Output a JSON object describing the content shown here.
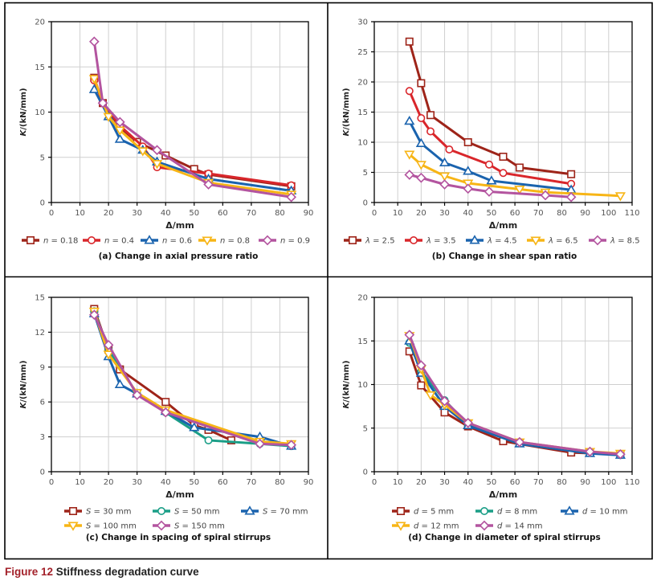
{
  "figure": {
    "label": "Figure 12",
    "title": "Stiffness degradation curve",
    "label_color": "#a3212a"
  },
  "chart_data": [
    {
      "id": "a",
      "type": "line",
      "title": "(a) Change in axial pressure ratio",
      "xlabel": "Δ/mm",
      "ylabel": "K/(kN/mm)",
      "xlim": [
        0,
        90
      ],
      "ylim": [
        0,
        20
      ],
      "xticks": [
        0,
        10,
        20,
        30,
        40,
        50,
        60,
        70,
        80,
        90
      ],
      "yticks": [
        0,
        5,
        10,
        15,
        20
      ],
      "grid": true,
      "legend_position": "bottom",
      "legend_symbol": "n",
      "series": [
        {
          "name": "n = 0.18",
          "symbol_label": "n",
          "value_label": " = 0.18",
          "marker": "square",
          "color": "#9e2419",
          "x": [
            15,
            18,
            24,
            30,
            40,
            50,
            55,
            84
          ],
          "y": [
            13.8,
            11.0,
            8.3,
            6.7,
            5.2,
            3.7,
            3.1,
            1.8
          ]
        },
        {
          "name": "n = 0.4",
          "symbol_label": "n",
          "value_label": " = 0.4",
          "marker": "circle",
          "color": "#d9262b",
          "x": [
            15,
            18,
            24,
            32,
            37,
            55,
            84
          ],
          "y": [
            13.5,
            11.0,
            8.5,
            6.2,
            3.9,
            3.2,
            1.9
          ]
        },
        {
          "name": "n = 0.6",
          "symbol_label": "n",
          "value_label": " = 0.6",
          "marker": "triangle-up",
          "color": "#1a63ae",
          "x": [
            15,
            20,
            24,
            32,
            37,
            55,
            84
          ],
          "y": [
            12.5,
            9.5,
            7.0,
            5.8,
            4.5,
            2.6,
            1.3
          ]
        },
        {
          "name": "n = 0.8",
          "symbol_label": "n",
          "value_label": " = 0.8",
          "marker": "triangle-down",
          "color": "#f7b516",
          "x": [
            15,
            20,
            24,
            32,
            37,
            55,
            84
          ],
          "y": [
            13.7,
            9.5,
            8.0,
            5.7,
            4.3,
            2.2,
            0.9
          ]
        },
        {
          "name": "n = 0.9",
          "symbol_label": "n",
          "value_label": " = 0.9",
          "marker": "diamond",
          "color": "#b3549f",
          "x": [
            15,
            18,
            24,
            37,
            55,
            84
          ],
          "y": [
            17.8,
            11.0,
            8.9,
            5.8,
            2.0,
            0.6
          ]
        }
      ]
    },
    {
      "id": "b",
      "type": "line",
      "title": "(b) Change in shear span ratio",
      "xlabel": "Δ/mm",
      "ylabel": "K/(kN/mm)",
      "xlim": [
        0,
        110
      ],
      "ylim": [
        0,
        30
      ],
      "xticks": [
        0,
        10,
        20,
        30,
        40,
        50,
        60,
        70,
        80,
        90,
        100,
        110
      ],
      "yticks": [
        0,
        5,
        10,
        15,
        20,
        25,
        30
      ],
      "grid": true,
      "legend_position": "bottom",
      "series": [
        {
          "name": "λ = 2.5",
          "symbol_label": "λ",
          "value_label": " = 2.5",
          "marker": "square",
          "color": "#9e2419",
          "x": [
            15,
            20,
            24,
            40,
            55,
            62,
            84
          ],
          "y": [
            26.7,
            19.8,
            14.5,
            10.0,
            7.6,
            5.8,
            4.7
          ]
        },
        {
          "name": "λ = 3.5",
          "symbol_label": "λ",
          "value_label": " = 3.5",
          "marker": "circle",
          "color": "#d9262b",
          "x": [
            15,
            20,
            24,
            32,
            49,
            55,
            84
          ],
          "y": [
            18.5,
            14.0,
            11.8,
            8.8,
            6.3,
            4.9,
            3.1
          ]
        },
        {
          "name": "λ = 4.5",
          "symbol_label": "λ",
          "value_label": " = 4.5",
          "marker": "triangle-up",
          "color": "#1a63ae",
          "x": [
            15,
            20,
            30,
            40,
            50,
            84
          ],
          "y": [
            13.5,
            9.8,
            6.6,
            5.2,
            3.6,
            2.1
          ]
        },
        {
          "name": "λ = 6.5",
          "symbol_label": "λ",
          "value_label": " = 6.5",
          "marker": "triangle-down",
          "color": "#f7b516",
          "x": [
            15,
            20,
            30,
            40,
            62,
            73,
            105
          ],
          "y": [
            8.0,
            6.3,
            4.4,
            3.2,
            2.2,
            1.7,
            1.1
          ]
        },
        {
          "name": "λ = 8.5",
          "symbol_label": "λ",
          "value_label": " = 8.5",
          "marker": "diamond",
          "color": "#b3549f",
          "x": [
            15,
            20,
            30,
            40,
            49,
            73,
            84
          ],
          "y": [
            4.6,
            4.1,
            3.0,
            2.3,
            1.8,
            1.2,
            0.9
          ]
        }
      ]
    },
    {
      "id": "c",
      "type": "line",
      "title": "(c) Change in spacing of spiral stirrups",
      "xlabel": "Δ/mm",
      "ylabel": "K/(kN/mm)",
      "xlim": [
        0,
        90
      ],
      "ylim": [
        0,
        15
      ],
      "xticks": [
        0,
        10,
        20,
        30,
        40,
        50,
        60,
        70,
        80,
        90
      ],
      "yticks": [
        0,
        3,
        6,
        9,
        12,
        15
      ],
      "grid": true,
      "legend_position": "bottom",
      "series": [
        {
          "name": "S = 30 mm",
          "symbol_label": "S",
          "value_label": " = 30 mm",
          "marker": "square",
          "color": "#9e2419",
          "x": [
            15,
            20,
            24,
            40,
            50,
            55,
            63
          ],
          "y": [
            14.0,
            10.5,
            8.8,
            6.0,
            4.0,
            3.6,
            2.7
          ]
        },
        {
          "name": "S = 50 mm",
          "symbol_label": "S",
          "value_label": " = 50 mm",
          "marker": "circle",
          "color": "#1a9e87",
          "x": [
            15,
            20,
            30,
            40,
            55,
            73,
            84
          ],
          "y": [
            13.8,
            10.5,
            6.7,
            5.1,
            2.7,
            2.4,
            2.2
          ]
        },
        {
          "name": "S = 70 mm",
          "symbol_label": "S",
          "value_label": " = 70 mm",
          "marker": "triangle-up",
          "color": "#1a63ae",
          "x": [
            15,
            20,
            24,
            30,
            40,
            50,
            73,
            84
          ],
          "y": [
            13.6,
            9.9,
            7.5,
            6.7,
            5.2,
            3.8,
            3.0,
            2.2
          ]
        },
        {
          "name": "S = 100 mm",
          "symbol_label": "S",
          "value_label": " = 100 mm",
          "marker": "triangle-down",
          "color": "#f7b516",
          "x": [
            15,
            20,
            30,
            40,
            73,
            84
          ],
          "y": [
            13.8,
            10.1,
            6.8,
            5.3,
            2.6,
            2.4
          ]
        },
        {
          "name": "S = 150 mm",
          "symbol_label": "S",
          "value_label": " = 150 mm",
          "marker": "diamond",
          "color": "#b3549f",
          "x": [
            15,
            20,
            30,
            40,
            73,
            84
          ],
          "y": [
            13.5,
            10.9,
            6.6,
            5.1,
            2.4,
            2.3
          ]
        }
      ]
    },
    {
      "id": "d",
      "type": "line",
      "title": "(d) Change in diameter of spiral stirrups",
      "xlabel": "Δ/mm",
      "ylabel": "K/(kN/mm)",
      "xlim": [
        0,
        110
      ],
      "ylim": [
        0,
        20
      ],
      "xticks": [
        0,
        10,
        20,
        30,
        40,
        50,
        60,
        70,
        80,
        90,
        100,
        110
      ],
      "yticks": [
        0,
        5,
        10,
        15,
        20
      ],
      "grid": true,
      "legend_position": "bottom",
      "series": [
        {
          "name": "d = 5 mm",
          "symbol_label": "d",
          "value_label": " = 5 mm",
          "marker": "square",
          "color": "#9e2419",
          "x": [
            15,
            20,
            30,
            40,
            55,
            84,
            105
          ],
          "y": [
            13.8,
            9.9,
            6.8,
            5.2,
            3.5,
            2.2,
            2.0
          ]
        },
        {
          "name": "d = 8 mm",
          "symbol_label": "d",
          "value_label": " = 8 mm",
          "marker": "circle",
          "color": "#1a9e87",
          "x": [
            15,
            20,
            30,
            40,
            62,
            92,
            105
          ],
          "y": [
            14.8,
            11.5,
            8.2,
            5.4,
            3.3,
            2.2,
            1.9
          ]
        },
        {
          "name": "d = 10 mm",
          "symbol_label": "d",
          "value_label": " = 10 mm",
          "marker": "triangle-up",
          "color": "#1a63ae",
          "x": [
            15,
            20,
            30,
            40,
            62,
            92,
            105
          ],
          "y": [
            15.0,
            11.3,
            7.5,
            5.3,
            3.2,
            2.1,
            1.9
          ]
        },
        {
          "name": "d = 12 mm",
          "symbol_label": "d",
          "value_label": " = 12 mm",
          "marker": "triangle-down",
          "color": "#f7b516",
          "x": [
            15,
            20,
            24,
            30,
            40,
            62,
            92,
            105
          ],
          "y": [
            15.6,
            11.8,
            8.8,
            7.7,
            5.6,
            3.4,
            2.3,
            2.1
          ]
        },
        {
          "name": "d = 14 mm",
          "symbol_label": "d",
          "value_label": " = 14 mm",
          "marker": "diamond",
          "color": "#b3549f",
          "x": [
            15,
            20,
            30,
            40,
            62,
            92,
            105
          ],
          "y": [
            15.7,
            12.2,
            8.1,
            5.6,
            3.4,
            2.3,
            2.0
          ]
        }
      ]
    }
  ]
}
